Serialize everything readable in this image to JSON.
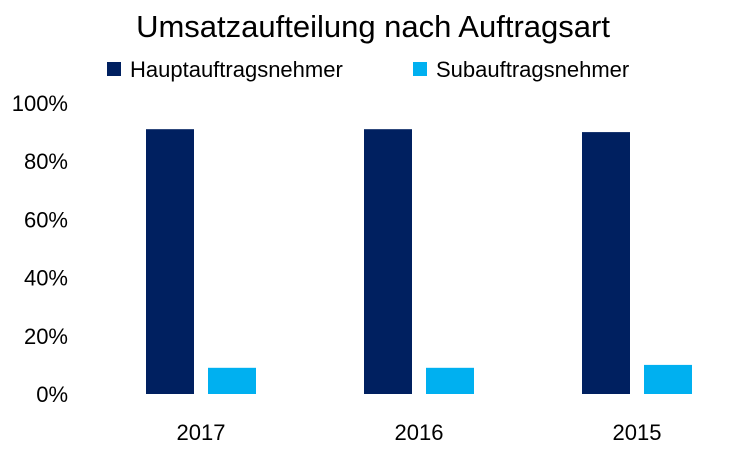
{
  "chart_data": {
    "type": "bar",
    "title": "Umsatzaufteilung nach Auftragsart",
    "categories": [
      "2017",
      "2016",
      "2015"
    ],
    "series": [
      {
        "name": "Hauptauftragsnehmer",
        "values": [
          91,
          91,
          90
        ],
        "color": "#002060"
      },
      {
        "name": "Subauftragsnehmer",
        "values": [
          9,
          9,
          10
        ],
        "color": "#00B0F0"
      }
    ],
    "ylim": [
      0,
      100
    ],
    "yticks": [
      "0%",
      "20%",
      "40%",
      "60%",
      "80%",
      "100%"
    ],
    "ytick_values": [
      0,
      20,
      40,
      60,
      80,
      100
    ],
    "legend_position": "top",
    "grid": false
  }
}
